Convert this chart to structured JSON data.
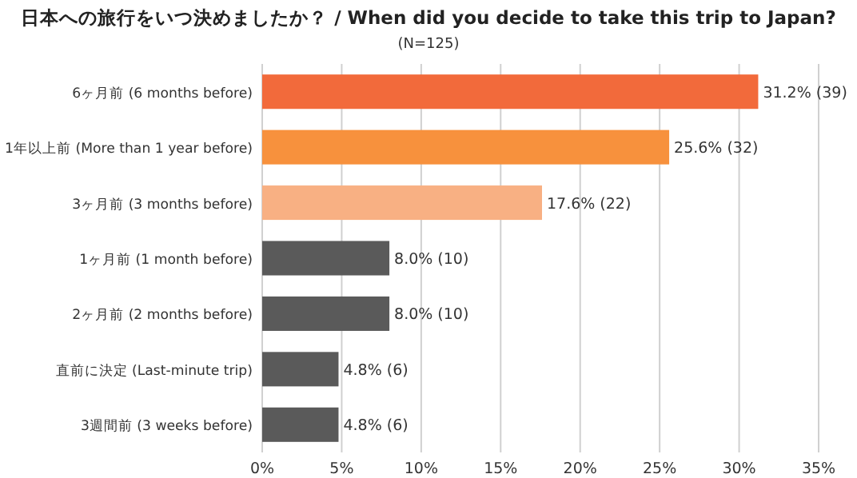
{
  "chart_data": {
    "type": "bar",
    "orientation": "horizontal",
    "title": "日本への旅行をいつ決めましたか？ / When did you decide to take this trip to Japan?",
    "subtitle": "(N=125)",
    "categories": [
      "6ヶ月前 (6 months before)",
      "1年以上前 (More than 1 year before)",
      "3ヶ月前 (3 months before)",
      "1ヶ月前 (1 month before)",
      "2ヶ月前 (2 months before)",
      "直前に決定 (Last-minute trip)",
      "3週間前 (3 weeks before)"
    ],
    "values": [
      31.2,
      25.6,
      17.6,
      8.0,
      8.0,
      4.8,
      4.8
    ],
    "value_labels": [
      "31.2% (39)",
      "25.6% (32)",
      "17.6% (22)",
      "8.0% (10)",
      "8.0% (10)",
      "4.8% (6)",
      "4.8% (6)"
    ],
    "colors": [
      "#f26a3b",
      "#f7913d",
      "#f8b083",
      "#5a5a5a",
      "#5a5a5a",
      "#5a5a5a",
      "#5a5a5a"
    ],
    "xlim": [
      0,
      35
    ],
    "xticks": [
      {
        "value": 0,
        "label": "0%"
      },
      {
        "value": 5,
        "label": "5%"
      },
      {
        "value": 10,
        "label": "10%"
      },
      {
        "value": 15,
        "label": "15%"
      },
      {
        "value": 20,
        "label": "20%"
      },
      {
        "value": 25,
        "label": "25%"
      },
      {
        "value": 30,
        "label": "30%"
      },
      {
        "value": 35,
        "label": "35%"
      }
    ],
    "grid": "x"
  }
}
